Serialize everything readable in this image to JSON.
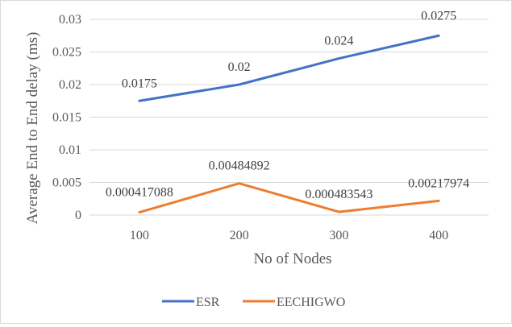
{
  "chart_data": {
    "type": "line",
    "title": "",
    "xlabel": "No of Nodes",
    "ylabel": "Average End to End delay (ms)",
    "categories": [
      "100",
      "200",
      "300",
      "400"
    ],
    "ylim": [
      0,
      0.03
    ],
    "yticks": [
      "0",
      "0.005",
      "0.01",
      "0.015",
      "0.02",
      "0.025",
      "0.03"
    ],
    "ytick_values": [
      0,
      0.005,
      0.01,
      0.015,
      0.02,
      0.025,
      0.03
    ],
    "grid": true,
    "legend_position": "bottom",
    "series": [
      {
        "name": "ESR",
        "color": "#4472c4",
        "values": [
          0.0175,
          0.02,
          0.024,
          0.0275
        ],
        "labels": [
          "0.0175",
          "0.02",
          "0.024",
          "0.0275"
        ]
      },
      {
        "name": "EECHIGWO",
        "color": "#ed7d31",
        "values": [
          0.000417088,
          0.00484892,
          0.000483543,
          0.00217974
        ],
        "labels": [
          "0.000417088",
          "0.00484892",
          "0.000483543",
          "0.00217974"
        ]
      }
    ]
  }
}
